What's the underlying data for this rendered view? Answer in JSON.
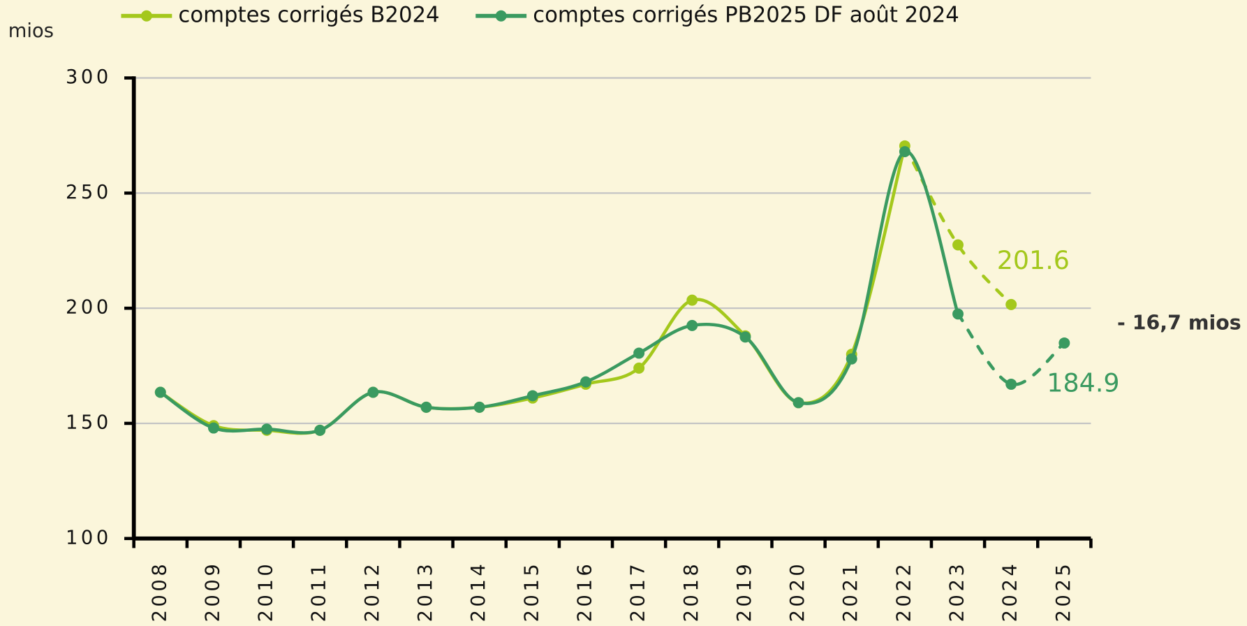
{
  "chart_data": {
    "type": "line",
    "y_label": "mios",
    "categories": [
      "2008",
      "2009",
      "2010",
      "2011",
      "2012",
      "2013",
      "2014",
      "2015",
      "2016",
      "2017",
      "2018",
      "2019",
      "2020",
      "2021",
      "2022",
      "2023",
      "2024",
      "2025"
    ],
    "series": [
      {
        "name": "comptes corrigés B2024",
        "color": "#a4c81c",
        "values": [
          163.5,
          149,
          147,
          147,
          163.5,
          157,
          157,
          161,
          167,
          174,
          203.5,
          188,
          159,
          180,
          270.5,
          227.5,
          201.6,
          null
        ]
      },
      {
        "name": "comptes corrigés PB2025 DF août 2024",
        "color": "#3a9a60",
        "values": [
          163.5,
          148,
          147.5,
          147,
          163.5,
          157,
          157,
          162,
          168,
          180.5,
          192.5,
          187.5,
          159,
          178,
          268,
          197.5,
          167,
          184.9
        ]
      }
    ],
    "annotations": [
      "- 16,7 mios"
    ],
    "ylim": [
      100,
      300
    ],
    "yticks": [
      100,
      150,
      200,
      250,
      300
    ],
    "grid": true
  }
}
